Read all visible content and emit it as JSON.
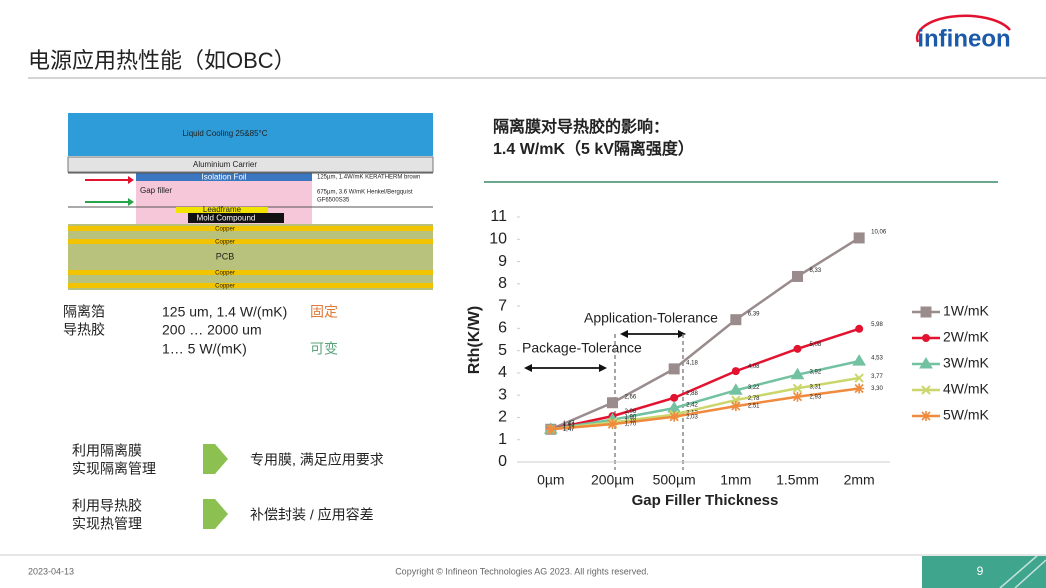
{
  "header": {
    "title": "电源应用热性能（如OBC）",
    "logo": "infineon"
  },
  "diagram": {
    "cooling": "Liquid Cooling 25&85°C",
    "carrier": "Aluminium Carrier",
    "foil": "Isolation Foil",
    "gap": "Gap filler",
    "leadframe": "Leadframe",
    "mold": "Mold Compound",
    "copper": "Copper",
    "pcb": "PCB",
    "foil_note": "125µm, 1.4W/mK KERATHERM brown",
    "gap_note": [
      "675µm, 3.6 W/mK Henkel/Bergquist",
      "GF6500S35"
    ]
  },
  "properties": [
    {
      "label": "隔离箔",
      "spec": "125 um, 1.4 W/(mK)",
      "note": "固定"
    },
    {
      "label": "导热胶",
      "spec": [
        "200 … 2000 um",
        "1… 5 W/(mK)"
      ],
      "note": "可变"
    }
  ],
  "actions": [
    {
      "left": [
        "利用隔离膜",
        "实现隔离管理"
      ],
      "right": "专用膜, 满足应用要求"
    },
    {
      "left": [
        "利用导热胶",
        "实现热管理"
      ],
      "right": "补偿封装 / 应用容差"
    }
  ],
  "chart_data": {
    "type": "line",
    "title": "隔离膜对导热胶的影响：",
    "subtitle": "1.4 W/mK（5 kV隔离强度）",
    "x_label": "Gap Filler Thickness",
    "y_label": "Rth(K/W)",
    "categories": [
      "0µm",
      "200µm",
      "500µm",
      "1mm",
      "1.5mm",
      "2mm"
    ],
    "ylim": [
      0,
      11
    ],
    "yticks": [
      0,
      1,
      2,
      3,
      4,
      5,
      6,
      7,
      8,
      9,
      10,
      11
    ],
    "grid": false,
    "legend": "right",
    "annotations": [
      "Application-Tolerance",
      "Package-Tolerance"
    ],
    "series": [
      {
        "name": "1W/mK",
        "color": "#9a8c8c",
        "marker": "square",
        "values": [
          1.47,
          2.66,
          4.18,
          6.39,
          8.33,
          10.06
        ],
        "value_labels": [
          "1,47",
          "2,66",
          "4,18",
          "6,39",
          "8,33",
          "10,06"
        ]
      },
      {
        "name": "2W/mK",
        "color": "#e3122f",
        "marker": "circle",
        "values": [
          1.47,
          2.06,
          2.88,
          4.08,
          5.08,
          5.98
        ],
        "value_labels": [
          "1,47",
          "2,06",
          "2,88",
          "4,08",
          "5,08",
          "5,98"
        ]
      },
      {
        "name": "3W/mK",
        "color": "#72c2a2",
        "marker": "triangle",
        "values": [
          1.47,
          1.9,
          2.42,
          3.22,
          3.92,
          4.53
        ],
        "value_labels": [
          "1,47",
          "1,90",
          "2,42",
          "3,22",
          "3,92",
          "4,53"
        ]
      },
      {
        "name": "4W/mK",
        "color": "#cbd66c",
        "marker": "cross",
        "values": [
          1.47,
          1.78,
          2.13,
          2.78,
          3.31,
          3.77
        ],
        "value_labels": [
          "1,47",
          "1,78",
          "2,13",
          "2,78",
          "3,31",
          "3,77"
        ]
      },
      {
        "name": "5W/mK",
        "color": "#ef8a3e",
        "marker": "star",
        "values": [
          1.47,
          1.7,
          2.03,
          2.51,
          2.93,
          3.3
        ],
        "value_labels": [
          "1,47",
          "1,70",
          "2,03",
          "2,51",
          "2,93",
          "3,30"
        ]
      }
    ]
  },
  "footer": {
    "date": "2023-04-13",
    "copyright": "Copyright © Infineon Technologies AG 2023. All rights reserved.",
    "page": "9"
  }
}
